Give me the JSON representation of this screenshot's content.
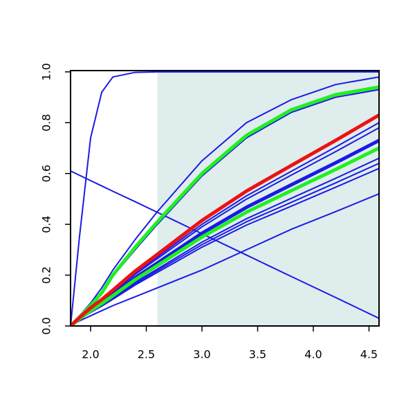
{
  "chart_data": {
    "type": "line",
    "x": [
      1.82,
      1.9,
      2.0,
      2.1,
      2.2,
      2.4,
      2.6,
      3.0,
      3.4,
      3.8,
      4.2,
      4.59
    ],
    "xlim": [
      1.82,
      4.59
    ],
    "ylim": [
      0,
      1.005
    ],
    "xticks": [
      {
        "value": 2.0,
        "label": "2.0"
      },
      {
        "value": 2.5,
        "label": "2.5"
      },
      {
        "value": 3.0,
        "label": "3.0"
      },
      {
        "value": 3.5,
        "label": "3.5"
      },
      {
        "value": 4.0,
        "label": "4.0"
      },
      {
        "value": 4.5,
        "label": "4.5"
      }
    ],
    "yticks": [
      {
        "value": 0,
        "label": "0.0"
      },
      {
        "value": 0.2,
        "label": "0.2"
      },
      {
        "value": 0.4,
        "label": "0.4"
      },
      {
        "value": 0.6,
        "label": "0.6"
      },
      {
        "value": 0.8,
        "label": "0.8"
      },
      {
        "value": 1.0,
        "label": "1.0"
      }
    ],
    "shade_from": 2.6,
    "shade_color": "#dfeded",
    "series": [
      {
        "color": "#1a1ae6",
        "width": 2,
        "values": [
          0,
          0.35,
          0.74,
          0.92,
          0.98,
          0.998,
          1,
          1,
          1,
          1,
          1,
          1
        ]
      },
      {
        "color": "#1a1ae6",
        "width": 2,
        "values": [
          0.61,
          0.593,
          0.572,
          0.551,
          0.53,
          0.489,
          0.447,
          0.363,
          0.279,
          0.195,
          0.112,
          0.03
        ]
      },
      {
        "color": "#1a1ae6",
        "width": 2,
        "values": [
          0,
          0.04,
          0.09,
          0.15,
          0.22,
          0.34,
          0.45,
          0.65,
          0.8,
          0.89,
          0.95,
          0.98
        ]
      },
      {
        "color": "#1a1ae6",
        "width": 2,
        "values": [
          0,
          0.035,
          0.078,
          0.128,
          0.195,
          0.3,
          0.4,
          0.59,
          0.74,
          0.84,
          0.9,
          0.93
        ]
      },
      {
        "color": "#1a1ae6",
        "width": 2,
        "values": [
          0,
          0.032,
          0.068,
          0.1,
          0.136,
          0.208,
          0.272,
          0.4,
          0.512,
          0.608,
          0.704,
          0.8
        ]
      },
      {
        "color": "#1a1ae6",
        "width": 2,
        "values": [
          0,
          0.031,
          0.066,
          0.098,
          0.133,
          0.203,
          0.265,
          0.39,
          0.499,
          0.593,
          0.686,
          0.78
        ]
      },
      {
        "color": "#1a1ae6",
        "width": 2,
        "values": [
          0,
          0.026,
          0.056,
          0.083,
          0.112,
          0.172,
          0.224,
          0.33,
          0.422,
          0.502,
          0.581,
          0.66
        ]
      },
      {
        "color": "#1a1ae6",
        "width": 2,
        "values": [
          0,
          0.026,
          0.054,
          0.08,
          0.109,
          0.166,
          0.218,
          0.32,
          0.41,
          0.486,
          0.563,
          0.64
        ]
      },
      {
        "color": "#1a1ae6",
        "width": 2,
        "values": [
          0,
          0.025,
          0.053,
          0.078,
          0.105,
          0.161,
          0.211,
          0.31,
          0.397,
          0.471,
          0.546,
          0.62
        ]
      },
      {
        "color": "#1a1ae6",
        "width": 2,
        "values": [
          0,
          0.02,
          0.04,
          0.06,
          0.08,
          0.115,
          0.15,
          0.22,
          0.3,
          0.38,
          0.45,
          0.52
        ]
      },
      {
        "color": "#1a1ae6",
        "width": 5,
        "values": [
          0,
          0.029,
          0.062,
          0.091,
          0.124,
          0.19,
          0.248,
          0.365,
          0.467,
          0.555,
          0.642,
          0.73
        ]
      },
      {
        "color": "#22ee22",
        "width": 5,
        "values": [
          0,
          0.035,
          0.08,
          0.13,
          0.2,
          0.31,
          0.41,
          0.6,
          0.75,
          0.85,
          0.91,
          0.94
        ]
      },
      {
        "color": "#22ee22",
        "width": 5,
        "values": [
          0,
          0.028,
          0.06,
          0.088,
          0.119,
          0.182,
          0.238,
          0.35,
          0.448,
          0.532,
          0.616,
          0.7
        ]
      },
      {
        "color": "#ee1111",
        "width": 5,
        "values": [
          0,
          0.033,
          0.071,
          0.104,
          0.141,
          0.216,
          0.282,
          0.415,
          0.531,
          0.631,
          0.73,
          0.83
        ]
      }
    ]
  }
}
